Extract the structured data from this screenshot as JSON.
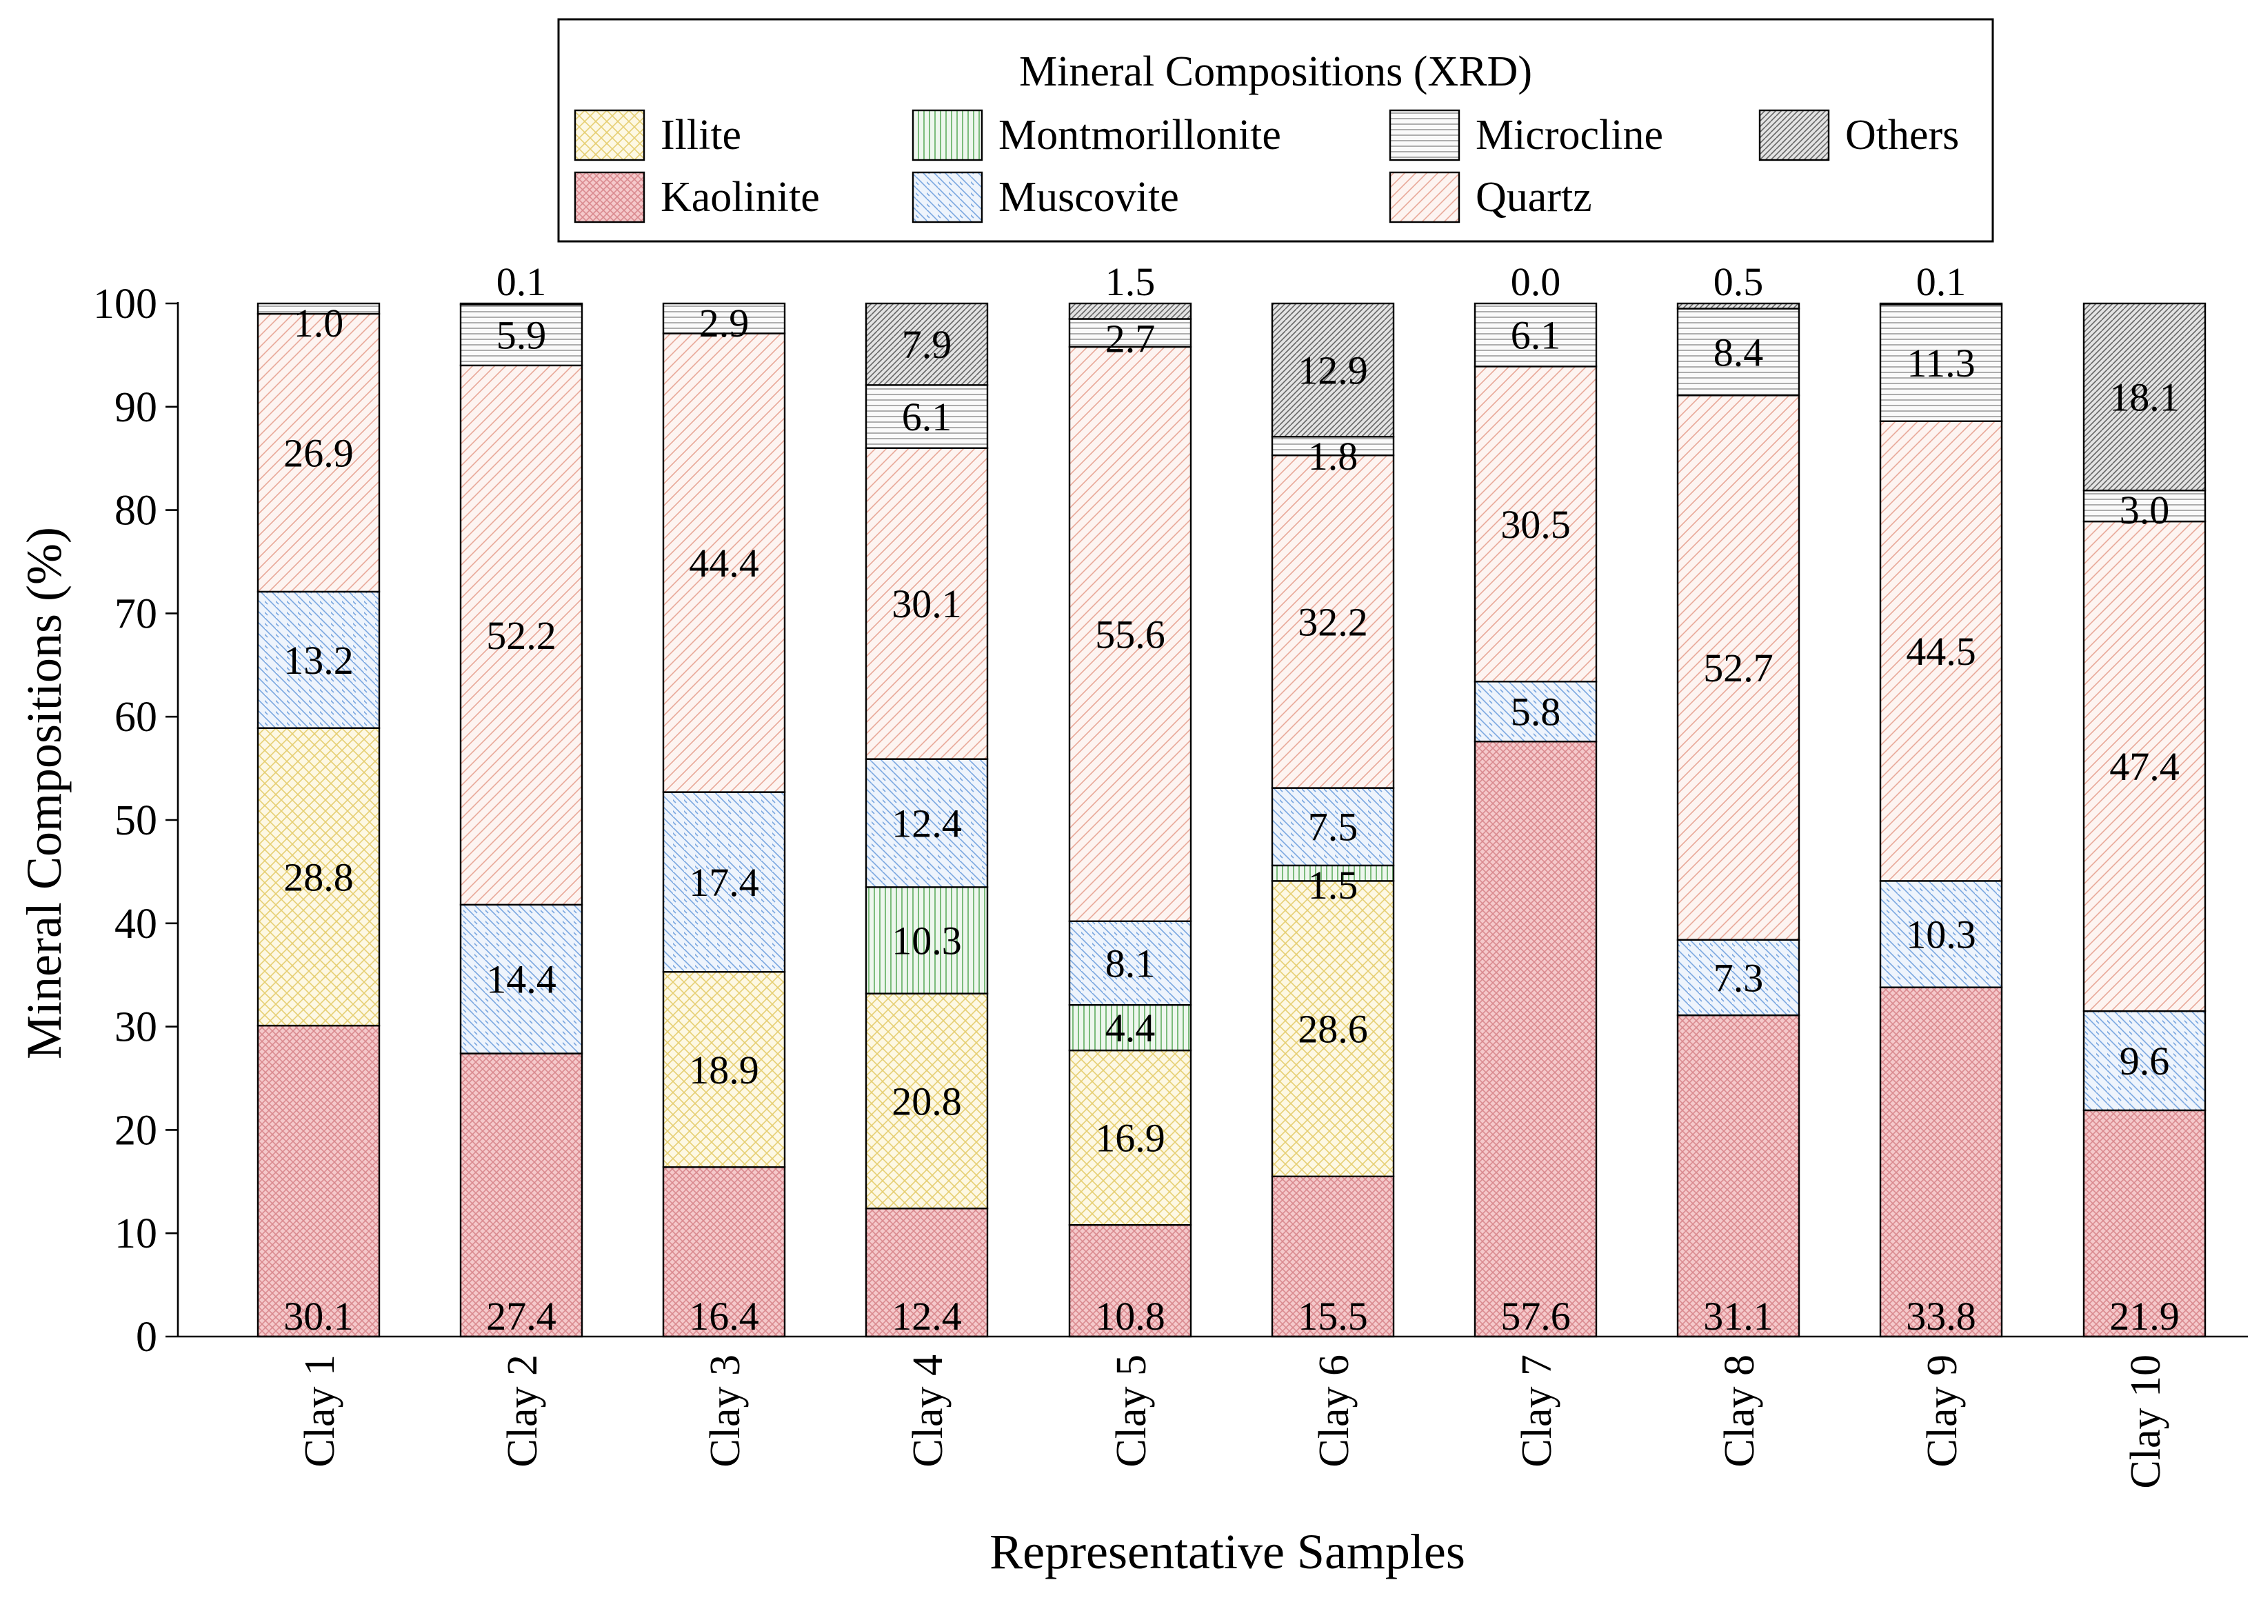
{
  "chart_data": {
    "type": "bar",
    "stacked": true,
    "title": "",
    "xlabel": "Representative Samples",
    "ylabel": "Mineral Compositions (%)",
    "ylim": [
      0,
      100
    ],
    "yticks": [
      0,
      10,
      20,
      30,
      40,
      50,
      60,
      70,
      80,
      90,
      100
    ],
    "grid": false,
    "legend_title": "Mineral Compositions (XRD)",
    "legend_placement": "top-center",
    "categories": [
      "Clay 1",
      "Clay 2",
      "Clay 3",
      "Clay 4",
      "Clay 5",
      "Clay 6",
      "Clay 7",
      "Clay 8",
      "Clay 9",
      "Clay 10"
    ],
    "series": [
      {
        "name": "Kaolinite",
        "color": "#f5c9cb",
        "line": "#d98a8f",
        "pattern": "cross-fine",
        "values": [
          30.1,
          27.4,
          16.4,
          12.4,
          10.8,
          15.5,
          57.6,
          31.1,
          33.8,
          21.9
        ],
        "labels": [
          "30.1",
          "27.4",
          "16.4",
          "12.4",
          "10.8",
          "15.5",
          "57.6",
          "31.1",
          "33.8",
          "21.9"
        ]
      },
      {
        "name": "Illite",
        "color": "#fdf8e4",
        "line": "#e6cf73",
        "pattern": "crosshatch",
        "values": [
          28.8,
          0,
          18.9,
          20.8,
          16.9,
          28.6,
          0,
          0,
          0,
          0
        ],
        "labels": [
          "28.8",
          "",
          "18.9",
          "20.8",
          "16.9",
          "28.6",
          "",
          "",
          "",
          ""
        ]
      },
      {
        "name": "Montmorillonite",
        "color": "#eef7ee",
        "line": "#5fae5f",
        "pattern": "vertical",
        "values": [
          0,
          0,
          0,
          10.3,
          4.4,
          1.5,
          0,
          0,
          0,
          0
        ],
        "labels": [
          "",
          "",
          "",
          "10.3",
          "4.4",
          "1.5",
          "",
          "",
          "",
          ""
        ]
      },
      {
        "name": "Muscovite",
        "color": "#eef4fc",
        "line": "#7aa7e0",
        "pattern": "diag-down",
        "values": [
          13.2,
          14.4,
          17.4,
          12.4,
          8.1,
          7.5,
          5.8,
          7.3,
          10.3,
          9.6
        ],
        "labels": [
          "13.2",
          "14.4",
          "17.4",
          "12.4",
          "8.1",
          "7.5",
          "5.8",
          "7.3",
          "10.3",
          "9.6"
        ]
      },
      {
        "name": "Quartz",
        "color": "#fdf4f1",
        "line": "#e8a898",
        "pattern": "diag-up",
        "values": [
          26.9,
          52.2,
          44.4,
          30.1,
          55.6,
          32.2,
          30.5,
          52.7,
          44.5,
          47.4
        ],
        "labels": [
          "26.9",
          "52.2",
          "44.4",
          "30.1",
          "55.6",
          "32.2",
          "30.5",
          "52.7",
          "44.5",
          "47.4"
        ]
      },
      {
        "name": "Microcline",
        "color": "#fafafa",
        "line": "#9a9a9a",
        "pattern": "horizontal",
        "values": [
          1.0,
          5.9,
          2.9,
          6.1,
          2.7,
          1.8,
          6.1,
          8.4,
          11.3,
          3.0
        ],
        "labels": [
          "1.0",
          "5.9",
          "2.9",
          "6.1",
          "2.7",
          "1.8",
          "6.1",
          "8.4",
          "11.3",
          "3.0"
        ]
      },
      {
        "name": "Others",
        "color": "#e3e3e3",
        "line": "#666666",
        "pattern": "diag-dense",
        "values": [
          0.0,
          0.1,
          0.0,
          7.9,
          1.5,
          12.9,
          0.0,
          0.5,
          0.1,
          18.1
        ],
        "labels": [
          "",
          "0.1",
          "",
          "7.9",
          "1.5",
          "12.9",
          "0.0",
          "0.5",
          "0.1",
          "18.1"
        ]
      }
    ],
    "legend_order": [
      "Illite",
      "Montmorillonite",
      "Microcline",
      "Others",
      "Kaolinite",
      "Muscovite",
      "Quartz"
    ]
  }
}
